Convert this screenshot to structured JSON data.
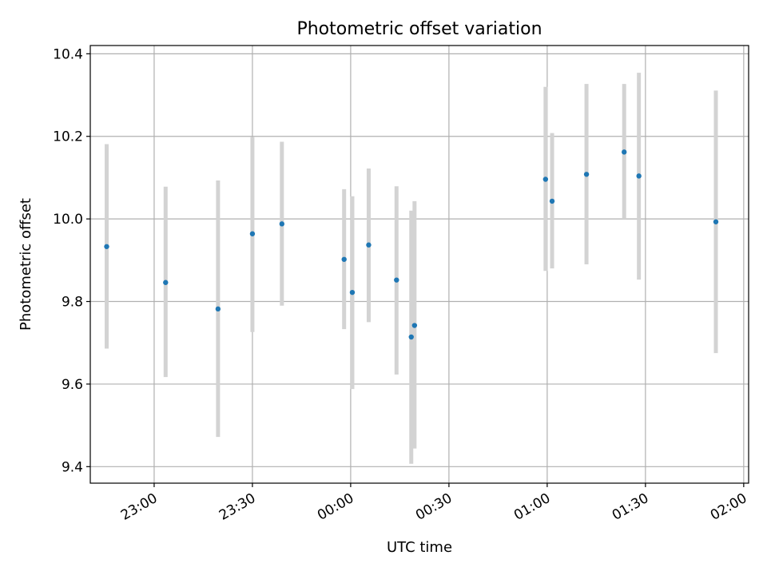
{
  "chart_data": {
    "type": "scatter",
    "title": "Photometric offset variation",
    "xlabel": "UTC time",
    "ylabel": "Photometric offset",
    "x_unit": "minutes",
    "xlim": [
      -79.5,
      121.5
    ],
    "ylim": [
      9.36,
      10.42
    ],
    "x_ticks": [
      {
        "value": -60,
        "label": "23:00"
      },
      {
        "value": -30,
        "label": "23:30"
      },
      {
        "value": 0,
        "label": "00:00"
      },
      {
        "value": 30,
        "label": "00:30"
      },
      {
        "value": 60,
        "label": "01:00"
      },
      {
        "value": 90,
        "label": "01:30"
      },
      {
        "value": 120,
        "label": "02:00"
      }
    ],
    "y_ticks": [
      {
        "value": 9.4,
        "label": "9.4"
      },
      {
        "value": 9.6,
        "label": "9.6"
      },
      {
        "value": 9.8,
        "label": "9.8"
      },
      {
        "value": 10.0,
        "label": "10.0"
      },
      {
        "value": 10.2,
        "label": "10.2"
      },
      {
        "value": 10.4,
        "label": "10.4"
      }
    ],
    "grid": true,
    "marker_color": "#1f77b4",
    "errorbar_color": "#d3d3d3",
    "points": [
      {
        "x": -74.5,
        "y": 9.933,
        "lo": 9.686,
        "hi": 10.181
      },
      {
        "x": -56.5,
        "y": 9.846,
        "lo": 9.617,
        "hi": 10.078
      },
      {
        "x": -40.5,
        "y": 9.782,
        "lo": 9.472,
        "hi": 10.093
      },
      {
        "x": -30.0,
        "y": 9.964,
        "lo": 9.726,
        "hi": 10.198
      },
      {
        "x": -21.0,
        "y": 9.988,
        "lo": 9.79,
        "hi": 10.187
      },
      {
        "x": -2.0,
        "y": 9.902,
        "lo": 9.733,
        "hi": 10.072
      },
      {
        "x": 0.5,
        "y": 9.822,
        "lo": 9.588,
        "hi": 10.055
      },
      {
        "x": 5.5,
        "y": 9.937,
        "lo": 9.75,
        "hi": 10.122
      },
      {
        "x": 14.0,
        "y": 9.852,
        "lo": 9.623,
        "hi": 10.079
      },
      {
        "x": 18.5,
        "y": 9.714,
        "lo": 9.407,
        "hi": 10.02
      },
      {
        "x": 19.5,
        "y": 9.742,
        "lo": 9.444,
        "hi": 10.043
      },
      {
        "x": 59.5,
        "y": 10.096,
        "lo": 9.874,
        "hi": 10.32
      },
      {
        "x": 61.5,
        "y": 10.043,
        "lo": 9.88,
        "hi": 10.208
      },
      {
        "x": 72.0,
        "y": 10.108,
        "lo": 9.89,
        "hi": 10.327
      },
      {
        "x": 83.5,
        "y": 10.162,
        "lo": 10.0,
        "hi": 10.327
      },
      {
        "x": 88.0,
        "y": 10.104,
        "lo": 9.853,
        "hi": 10.354
      },
      {
        "x": 111.5,
        "y": 9.993,
        "lo": 9.675,
        "hi": 10.311
      }
    ]
  }
}
